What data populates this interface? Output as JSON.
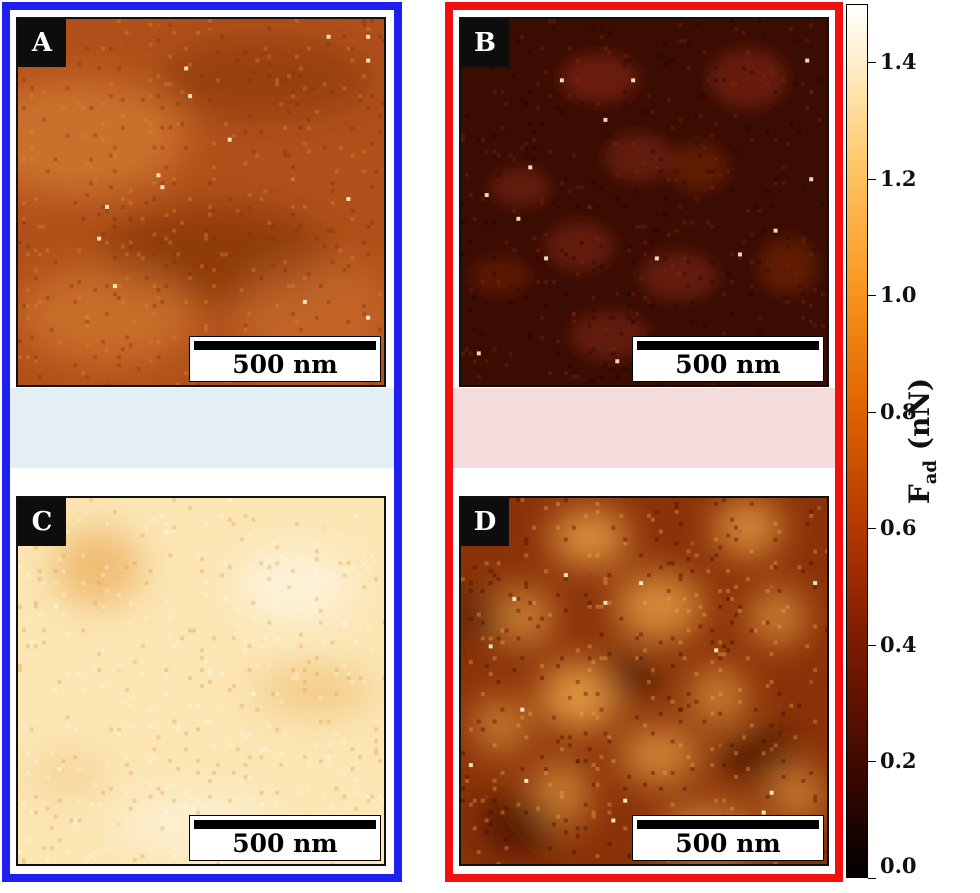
{
  "panels": [
    {
      "id": "a",
      "label": "A",
      "scale_bar": "500 nm",
      "base": "#b0501a",
      "dark": "#7a2c08",
      "light": "#e28a3a"
    },
    {
      "id": "b",
      "label": "B",
      "scale_bar": "500 nm",
      "base": "#3a0c02",
      "dark": "#1e0400",
      "light": "#8a2a0e"
    },
    {
      "id": "c",
      "label": "C",
      "scale_bar": "500 nm",
      "base": "#fbe6b4",
      "dark": "#e89a40",
      "light": "#fffaee"
    },
    {
      "id": "d",
      "label": "D",
      "scale_bar": "500 nm",
      "base": "#8a3208",
      "dark": "#2a0600",
      "light": "#f8b050"
    }
  ],
  "frames": {
    "left_color": "#1f1ff0",
    "right_color": "#f01010"
  },
  "colorbar": {
    "label_main": "F",
    "label_sub": "ad",
    "label_unit": "(nN)",
    "min": 0.0,
    "max": 1.5,
    "ticks": [
      "0.0",
      "0.2",
      "0.4",
      "0.6",
      "0.8",
      "1.0",
      "1.2",
      "1.4"
    ]
  }
}
